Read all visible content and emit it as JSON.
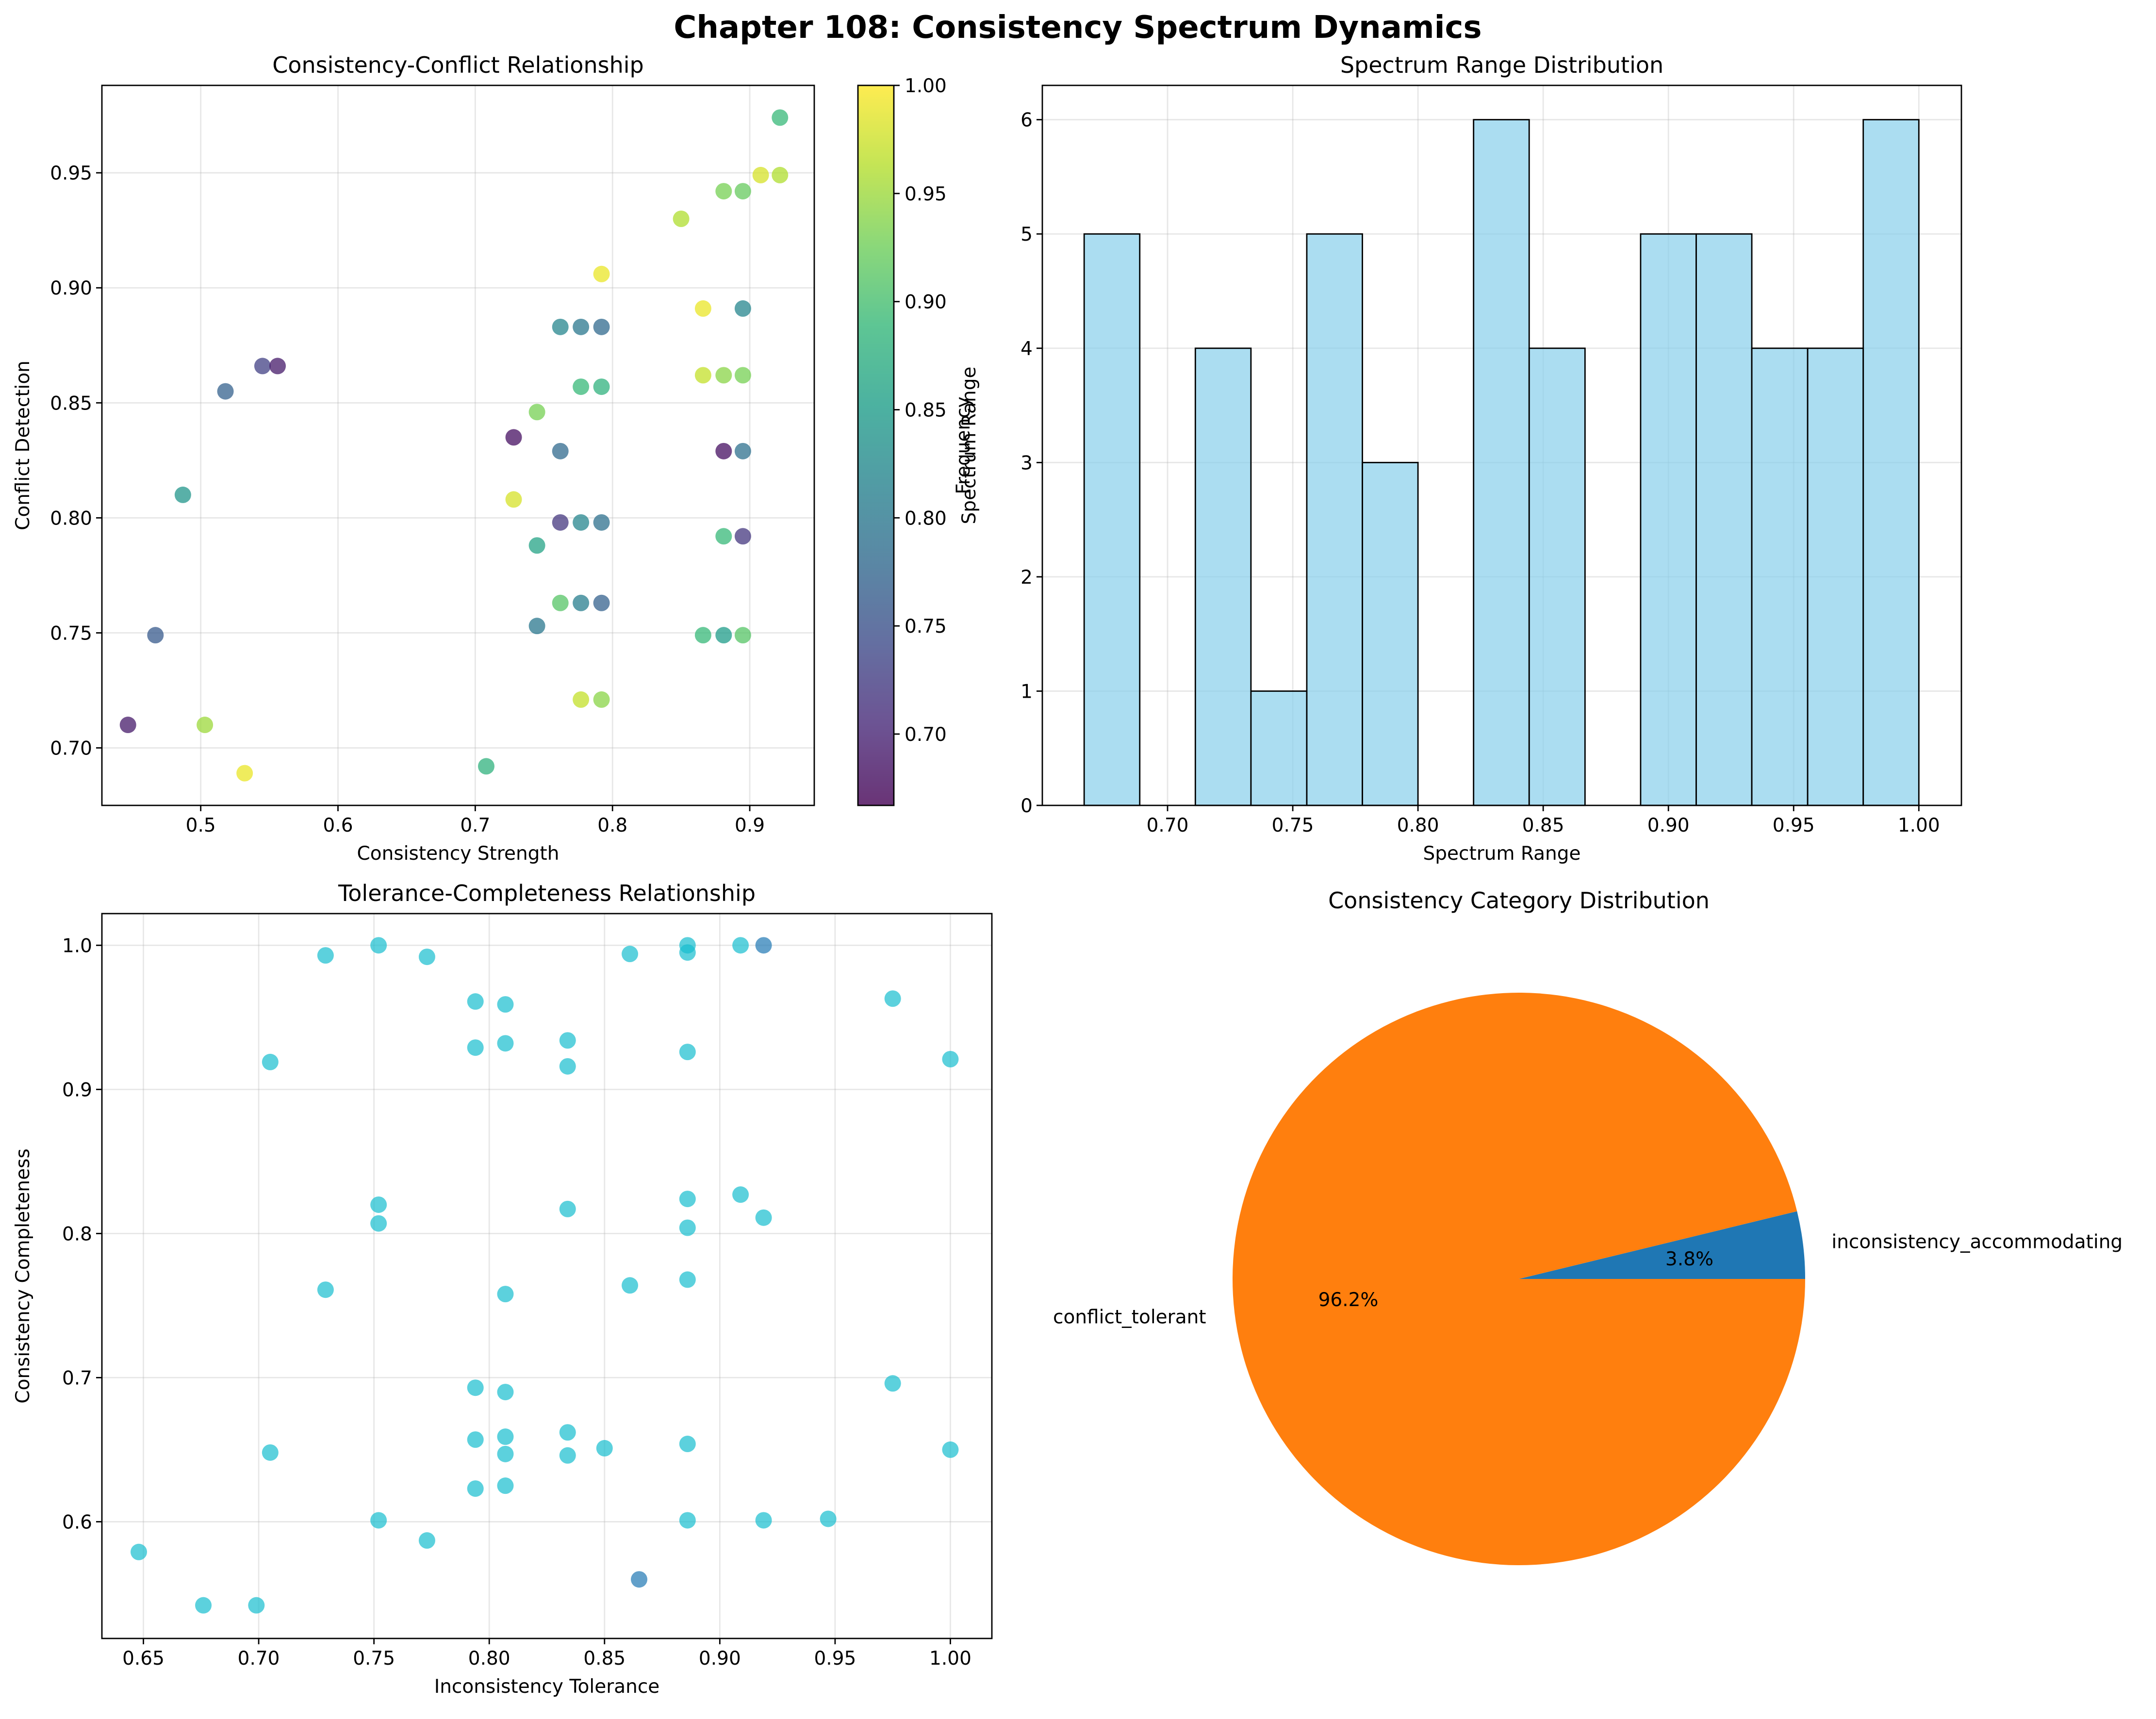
{
  "suptitle": "Chapter 108: Consistency Spectrum Dynamics",
  "chart_data": [
    {
      "type": "scatter",
      "title": "Consistency-Conflict Relationship",
      "xlabel": "Consistency Strength",
      "ylabel": "Conflict Detection",
      "xlim": [
        0.428,
        0.947
      ],
      "ylim": [
        0.675,
        0.988
      ],
      "xticks": [
        0.5,
        0.6,
        0.7,
        0.8,
        0.9
      ],
      "yticks": [
        0.7,
        0.75,
        0.8,
        0.85,
        0.9,
        0.95
      ],
      "xtick_labels": [
        "0.5",
        "0.6",
        "0.7",
        "0.8",
        "0.9"
      ],
      "ytick_labels": [
        "0.70",
        "0.75",
        "0.80",
        "0.85",
        "0.90",
        "0.95"
      ],
      "grid": true,
      "colormap": "viridis",
      "colorbar": {
        "label": "Spectrum Range",
        "range": [
          0.667,
          1.0
        ],
        "ticks": [
          0.7,
          0.75,
          0.8,
          0.85,
          0.9,
          0.95,
          1.0
        ],
        "tick_labels": [
          "0.70",
          "0.75",
          "0.80",
          "0.85",
          "0.90",
          "0.95",
          "1.00"
        ]
      },
      "points": [
        {
          "x": 0.922,
          "y": 0.974,
          "c": 0.89
        },
        {
          "x": 0.908,
          "y": 0.949,
          "c": 0.98
        },
        {
          "x": 0.922,
          "y": 0.949,
          "c": 0.96
        },
        {
          "x": 0.881,
          "y": 0.942,
          "c": 0.93
        },
        {
          "x": 0.895,
          "y": 0.942,
          "c": 0.92
        },
        {
          "x": 0.85,
          "y": 0.93,
          "c": 0.96
        },
        {
          "x": 0.792,
          "y": 0.906,
          "c": 0.99
        },
        {
          "x": 0.866,
          "y": 0.891,
          "c": 0.99
        },
        {
          "x": 0.895,
          "y": 0.891,
          "c": 0.82
        },
        {
          "x": 0.762,
          "y": 0.883,
          "c": 0.82
        },
        {
          "x": 0.777,
          "y": 0.883,
          "c": 0.8
        },
        {
          "x": 0.792,
          "y": 0.883,
          "c": 0.78
        },
        {
          "x": 0.545,
          "y": 0.866,
          "c": 0.73
        },
        {
          "x": 0.556,
          "y": 0.866,
          "c": 0.69
        },
        {
          "x": 0.866,
          "y": 0.862,
          "c": 0.97
        },
        {
          "x": 0.881,
          "y": 0.862,
          "c": 0.94
        },
        {
          "x": 0.895,
          "y": 0.862,
          "c": 0.93
        },
        {
          "x": 0.777,
          "y": 0.857,
          "c": 0.89
        },
        {
          "x": 0.792,
          "y": 0.857,
          "c": 0.88
        },
        {
          "x": 0.518,
          "y": 0.855,
          "c": 0.77
        },
        {
          "x": 0.745,
          "y": 0.846,
          "c": 0.93
        },
        {
          "x": 0.728,
          "y": 0.835,
          "c": 0.68
        },
        {
          "x": 0.762,
          "y": 0.829,
          "c": 0.78
        },
        {
          "x": 0.881,
          "y": 0.829,
          "c": 0.68
        },
        {
          "x": 0.895,
          "y": 0.829,
          "c": 0.79
        },
        {
          "x": 0.487,
          "y": 0.81,
          "c": 0.84
        },
        {
          "x": 0.728,
          "y": 0.808,
          "c": 0.98
        },
        {
          "x": 0.762,
          "y": 0.798,
          "c": 0.72
        },
        {
          "x": 0.777,
          "y": 0.798,
          "c": 0.82
        },
        {
          "x": 0.792,
          "y": 0.798,
          "c": 0.79
        },
        {
          "x": 0.881,
          "y": 0.792,
          "c": 0.89
        },
        {
          "x": 0.895,
          "y": 0.792,
          "c": 0.72
        },
        {
          "x": 0.745,
          "y": 0.788,
          "c": 0.86
        },
        {
          "x": 0.762,
          "y": 0.763,
          "c": 0.91
        },
        {
          "x": 0.777,
          "y": 0.763,
          "c": 0.81
        },
        {
          "x": 0.792,
          "y": 0.763,
          "c": 0.77
        },
        {
          "x": 0.745,
          "y": 0.753,
          "c": 0.8
        },
        {
          "x": 0.467,
          "y": 0.749,
          "c": 0.76
        },
        {
          "x": 0.866,
          "y": 0.749,
          "c": 0.89
        },
        {
          "x": 0.881,
          "y": 0.749,
          "c": 0.85
        },
        {
          "x": 0.895,
          "y": 0.749,
          "c": 0.91
        },
        {
          "x": 0.777,
          "y": 0.721,
          "c": 0.97
        },
        {
          "x": 0.792,
          "y": 0.721,
          "c": 0.94
        },
        {
          "x": 0.447,
          "y": 0.71,
          "c": 0.69
        },
        {
          "x": 0.503,
          "y": 0.71,
          "c": 0.95
        },
        {
          "x": 0.708,
          "y": 0.692,
          "c": 0.88
        },
        {
          "x": 0.532,
          "y": 0.689,
          "c": 0.99
        }
      ]
    },
    {
      "type": "bar",
      "subtype": "histogram",
      "title": "Spectrum Range Distribution",
      "xlabel": "Spectrum Range",
      "ylabel": "Frequency",
      "xlim": [
        0.65,
        1.017
      ],
      "ylim": [
        0,
        6.3
      ],
      "xticks": [
        0.7,
        0.75,
        0.8,
        0.85,
        0.9,
        0.95,
        1.0
      ],
      "xtick_labels": [
        "0.70",
        "0.75",
        "0.80",
        "0.85",
        "0.90",
        "0.95",
        "1.00"
      ],
      "yticks": [
        0,
        1,
        2,
        3,
        4,
        5,
        6
      ],
      "ytick_labels": [
        "0",
        "1",
        "2",
        "3",
        "4",
        "5",
        "6"
      ],
      "grid": true,
      "bar_color": "#87ceeb",
      "bin_edges": [
        0.6667,
        0.6889,
        0.7111,
        0.7333,
        0.7556,
        0.7778,
        0.8,
        0.8222,
        0.8444,
        0.8667,
        0.8889,
        0.9111,
        0.9333,
        0.9556,
        0.9778,
        1.0
      ],
      "values": [
        5,
        0,
        4,
        1,
        5,
        3,
        0,
        6,
        4,
        0,
        5,
        5,
        4,
        4,
        6
      ]
    },
    {
      "type": "scatter",
      "title": "Tolerance-Completeness Relationship",
      "xlabel": "Inconsistency Tolerance",
      "ylabel": "Consistency Completeness",
      "xlim": [
        0.632,
        1.018
      ],
      "ylim": [
        0.519,
        1.022
      ],
      "xticks": [
        0.65,
        0.7,
        0.75,
        0.8,
        0.85,
        0.9,
        0.95,
        1.0
      ],
      "xtick_labels": [
        "0.65",
        "0.70",
        "0.75",
        "0.80",
        "0.85",
        "0.90",
        "0.95",
        "1.00"
      ],
      "yticks": [
        0.6,
        0.7,
        0.8,
        0.9,
        1.0
      ],
      "ytick_labels": [
        "0.6",
        "0.7",
        "0.8",
        "0.9",
        "1.0"
      ],
      "grid": true,
      "categories": [
        {
          "name": "conflict_tolerant",
          "color": "#17becf"
        },
        {
          "name": "inconsistency_accommodating",
          "color": "#1f77b4"
        }
      ],
      "points": [
        {
          "x": 0.752,
          "y": 1.0,
          "cat": 0
        },
        {
          "x": 0.886,
          "y": 1.0,
          "cat": 0
        },
        {
          "x": 0.909,
          "y": 1.0,
          "cat": 0
        },
        {
          "x": 0.919,
          "y": 1.0,
          "cat": 1
        },
        {
          "x": 0.729,
          "y": 0.993,
          "cat": 0
        },
        {
          "x": 0.773,
          "y": 0.992,
          "cat": 0
        },
        {
          "x": 0.861,
          "y": 0.994,
          "cat": 0
        },
        {
          "x": 0.886,
          "y": 0.995,
          "cat": 0
        },
        {
          "x": 0.975,
          "y": 0.963,
          "cat": 0
        },
        {
          "x": 0.794,
          "y": 0.961,
          "cat": 0
        },
        {
          "x": 0.807,
          "y": 0.959,
          "cat": 0
        },
        {
          "x": 0.834,
          "y": 0.934,
          "cat": 0
        },
        {
          "x": 0.807,
          "y": 0.932,
          "cat": 0
        },
        {
          "x": 0.794,
          "y": 0.929,
          "cat": 0
        },
        {
          "x": 0.886,
          "y": 0.926,
          "cat": 0
        },
        {
          "x": 0.705,
          "y": 0.919,
          "cat": 0
        },
        {
          "x": 1.0,
          "y": 0.921,
          "cat": 0
        },
        {
          "x": 0.834,
          "y": 0.916,
          "cat": 0
        },
        {
          "x": 0.909,
          "y": 0.827,
          "cat": 0
        },
        {
          "x": 0.886,
          "y": 0.824,
          "cat": 0
        },
        {
          "x": 0.752,
          "y": 0.82,
          "cat": 0
        },
        {
          "x": 0.834,
          "y": 0.817,
          "cat": 0
        },
        {
          "x": 0.919,
          "y": 0.811,
          "cat": 0
        },
        {
          "x": 0.752,
          "y": 0.807,
          "cat": 0
        },
        {
          "x": 0.886,
          "y": 0.804,
          "cat": 0
        },
        {
          "x": 0.886,
          "y": 0.768,
          "cat": 0
        },
        {
          "x": 0.861,
          "y": 0.764,
          "cat": 0
        },
        {
          "x": 0.729,
          "y": 0.761,
          "cat": 0
        },
        {
          "x": 0.807,
          "y": 0.758,
          "cat": 0
        },
        {
          "x": 0.975,
          "y": 0.696,
          "cat": 0
        },
        {
          "x": 0.794,
          "y": 0.693,
          "cat": 0
        },
        {
          "x": 0.807,
          "y": 0.69,
          "cat": 0
        },
        {
          "x": 0.834,
          "y": 0.662,
          "cat": 0
        },
        {
          "x": 0.807,
          "y": 0.659,
          "cat": 0
        },
        {
          "x": 0.794,
          "y": 0.657,
          "cat": 0
        },
        {
          "x": 0.886,
          "y": 0.654,
          "cat": 0
        },
        {
          "x": 0.85,
          "y": 0.651,
          "cat": 0
        },
        {
          "x": 1.0,
          "y": 0.65,
          "cat": 0
        },
        {
          "x": 0.705,
          "y": 0.648,
          "cat": 0
        },
        {
          "x": 0.807,
          "y": 0.647,
          "cat": 0
        },
        {
          "x": 0.834,
          "y": 0.646,
          "cat": 0
        },
        {
          "x": 0.807,
          "y": 0.625,
          "cat": 0
        },
        {
          "x": 0.794,
          "y": 0.623,
          "cat": 0
        },
        {
          "x": 0.947,
          "y": 0.602,
          "cat": 0
        },
        {
          "x": 0.752,
          "y": 0.601,
          "cat": 0
        },
        {
          "x": 0.886,
          "y": 0.601,
          "cat": 0
        },
        {
          "x": 0.919,
          "y": 0.601,
          "cat": 0
        },
        {
          "x": 0.773,
          "y": 0.587,
          "cat": 0
        },
        {
          "x": 0.648,
          "y": 0.579,
          "cat": 0
        },
        {
          "x": 0.865,
          "y": 0.56,
          "cat": 1
        },
        {
          "x": 0.676,
          "y": 0.542,
          "cat": 0
        },
        {
          "x": 0.699,
          "y": 0.542,
          "cat": 0
        }
      ]
    },
    {
      "type": "pie",
      "title": "Consistency Category Distribution",
      "slices": [
        {
          "label": "inconsistency_accommodating",
          "value": 3.8,
          "pct_label": "3.8%",
          "color": "#1f77b4"
        },
        {
          "label": "conflict_tolerant",
          "value": 96.2,
          "pct_label": "96.2%",
          "color": "#ff7f0e"
        }
      ]
    }
  ]
}
